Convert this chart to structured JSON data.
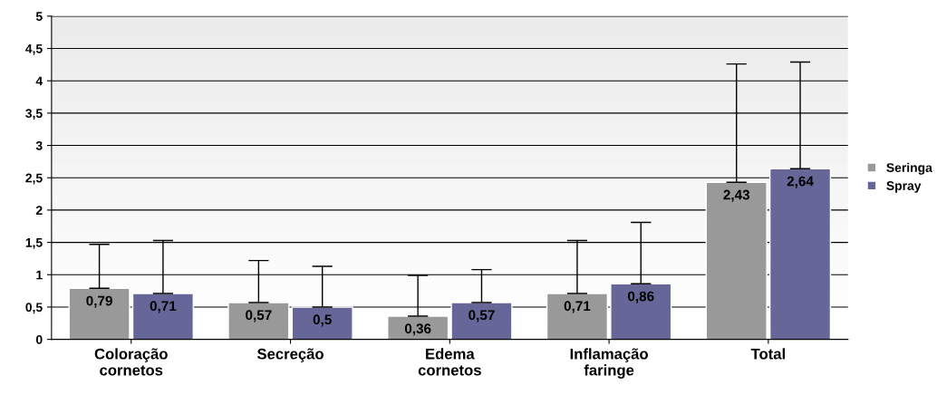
{
  "chart_data": {
    "type": "bar",
    "categories": [
      "Coloração\ncornetos",
      "Secreção",
      "Edema\ncornetos",
      "Inflamação\nfaringe",
      "Total"
    ],
    "series": [
      {
        "name": "Seringa",
        "color": "#999999",
        "values": [
          0.79,
          0.57,
          0.36,
          0.71,
          2.43
        ],
        "value_labels": [
          "0,79",
          "0,57",
          "0,36",
          "0,71",
          "2,43"
        ],
        "errors": [
          [
            0.79,
            1.47
          ],
          [
            0.57,
            1.22
          ],
          [
            0.36,
            0.99
          ],
          [
            0.71,
            1.53
          ],
          [
            2.43,
            4.26
          ]
        ]
      },
      {
        "name": "Spray",
        "color": "#666699",
        "values": [
          0.71,
          0.5,
          0.57,
          0.86,
          2.64
        ],
        "value_labels": [
          "0,71",
          "0,5",
          "0,57",
          "0,86",
          "2,64"
        ],
        "errors": [
          [
            0.71,
            1.53
          ],
          [
            0.5,
            1.13
          ],
          [
            0.57,
            1.08
          ],
          [
            0.86,
            1.81
          ],
          [
            2.64,
            4.29
          ]
        ]
      }
    ],
    "ylim": [
      0,
      5
    ],
    "yticks": [
      0,
      {
        "value": 0.5,
        "label": "0,5"
      },
      1,
      {
        "value": 1.5,
        "label": "1,5"
      },
      2,
      {
        "value": 2.5,
        "label": "2,5"
      },
      3,
      {
        "value": 3.5,
        "label": "3,5"
      },
      4,
      {
        "value": 4.5,
        "label": "4,5"
      },
      5
    ],
    "grid": "y",
    "legend": "right"
  }
}
